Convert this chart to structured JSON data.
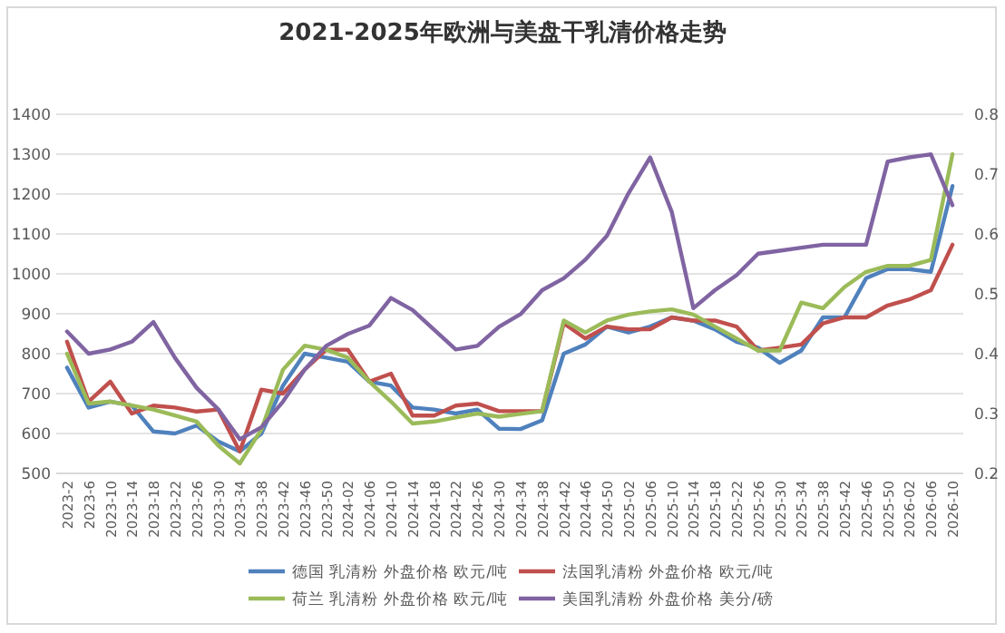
{
  "chart_data": {
    "type": "line",
    "title": "2021-2025年欧洲与美盘干乳清价格走势",
    "categories": [
      "2023-2",
      "2023-6",
      "2023-10",
      "2023-14",
      "2023-18",
      "2023-22",
      "2023-26",
      "2023-30",
      "2023-34",
      "2023-38",
      "2023-42",
      "2023-46",
      "2023-50",
      "2024-02",
      "2024-06",
      "2024-10",
      "2024-14",
      "2024-18",
      "2024-22",
      "2024-26",
      "2024-30",
      "2024-34",
      "2024-38",
      "2024-42",
      "2024-46",
      "2024-50",
      "2025-02",
      "2025-06",
      "2025-10",
      "2025-14",
      "2025-18",
      "2025-22",
      "2025-26",
      "2025-30",
      "2025-34",
      "2025-38",
      "2025-42",
      "2025-46",
      "2025-50",
      "2026-02",
      "2026-06",
      "2026-10"
    ],
    "series": [
      {
        "name": "德国 乳清粉 外盘价格 欧元/吨",
        "color": "#4f81bd",
        "values": [
          765,
          665,
          680,
          670,
          605,
          600,
          620,
          580,
          555,
          600,
          720,
          800,
          790,
          780,
          730,
          720,
          665,
          660,
          650,
          660,
          612,
          611,
          633,
          800,
          823,
          868,
          853,
          868,
          891,
          883,
          861,
          830,
          815,
          777,
          808,
          891,
          891,
          989,
          1012,
          1012,
          1005,
          1220
        ]
      },
      {
        "name": "法国乳清粉 外盘价格 欧元/吨",
        "color": "#c0504d",
        "values": [
          830,
          680,
          730,
          650,
          670,
          665,
          655,
          660,
          555,
          710,
          700,
          760,
          810,
          810,
          730,
          750,
          645,
          645,
          670,
          675,
          656,
          656,
          656,
          876,
          838,
          868,
          861,
          861,
          891,
          883,
          883,
          868,
          808,
          815,
          823,
          876,
          891,
          891,
          921,
          936,
          959,
          1073
        ]
      },
      {
        "name": "荷兰 乳清粉 外盘价格 欧元/吨",
        "color": "#9bbb59",
        "values": [
          800,
          675,
          680,
          670,
          660,
          645,
          630,
          570,
          525,
          610,
          760,
          820,
          810,
          790,
          730,
          680,
          625,
          630,
          640,
          650,
          642,
          649,
          656,
          883,
          853,
          883,
          898,
          906,
          911,
          898,
          868,
          838,
          808,
          808,
          928,
          914,
          967,
          1005,
          1020,
          1020,
          1035,
          1300
        ]
      },
      {
        "name": "美国乳清粉 外盘价格 美分/磅",
        "color": "#8064a2",
        "axis": "y2",
        "values": [
          0.437,
          0.4,
          0.407,
          0.42,
          0.453,
          0.393,
          0.343,
          0.307,
          0.257,
          0.277,
          0.32,
          0.373,
          0.413,
          0.433,
          0.447,
          0.493,
          0.473,
          0.44,
          0.407,
          0.413,
          0.445,
          0.466,
          0.506,
          0.526,
          0.557,
          0.597,
          0.668,
          0.728,
          0.637,
          0.476,
          0.506,
          0.531,
          0.567,
          0.572,
          0.577,
          0.582,
          0.582,
          0.582,
          0.721,
          0.728,
          0.733,
          0.648
        ]
      }
    ],
    "ylim": [
      500,
      1400
    ],
    "yticks": [
      500,
      600,
      700,
      800,
      900,
      1000,
      1100,
      1200,
      1300,
      1400
    ],
    "y2lim": [
      0.2,
      0.8
    ],
    "y2ticks": [
      0.2,
      0.3,
      0.4,
      0.5,
      0.6,
      0.7,
      0.8
    ],
    "grid": "y",
    "legend": "bottom"
  }
}
